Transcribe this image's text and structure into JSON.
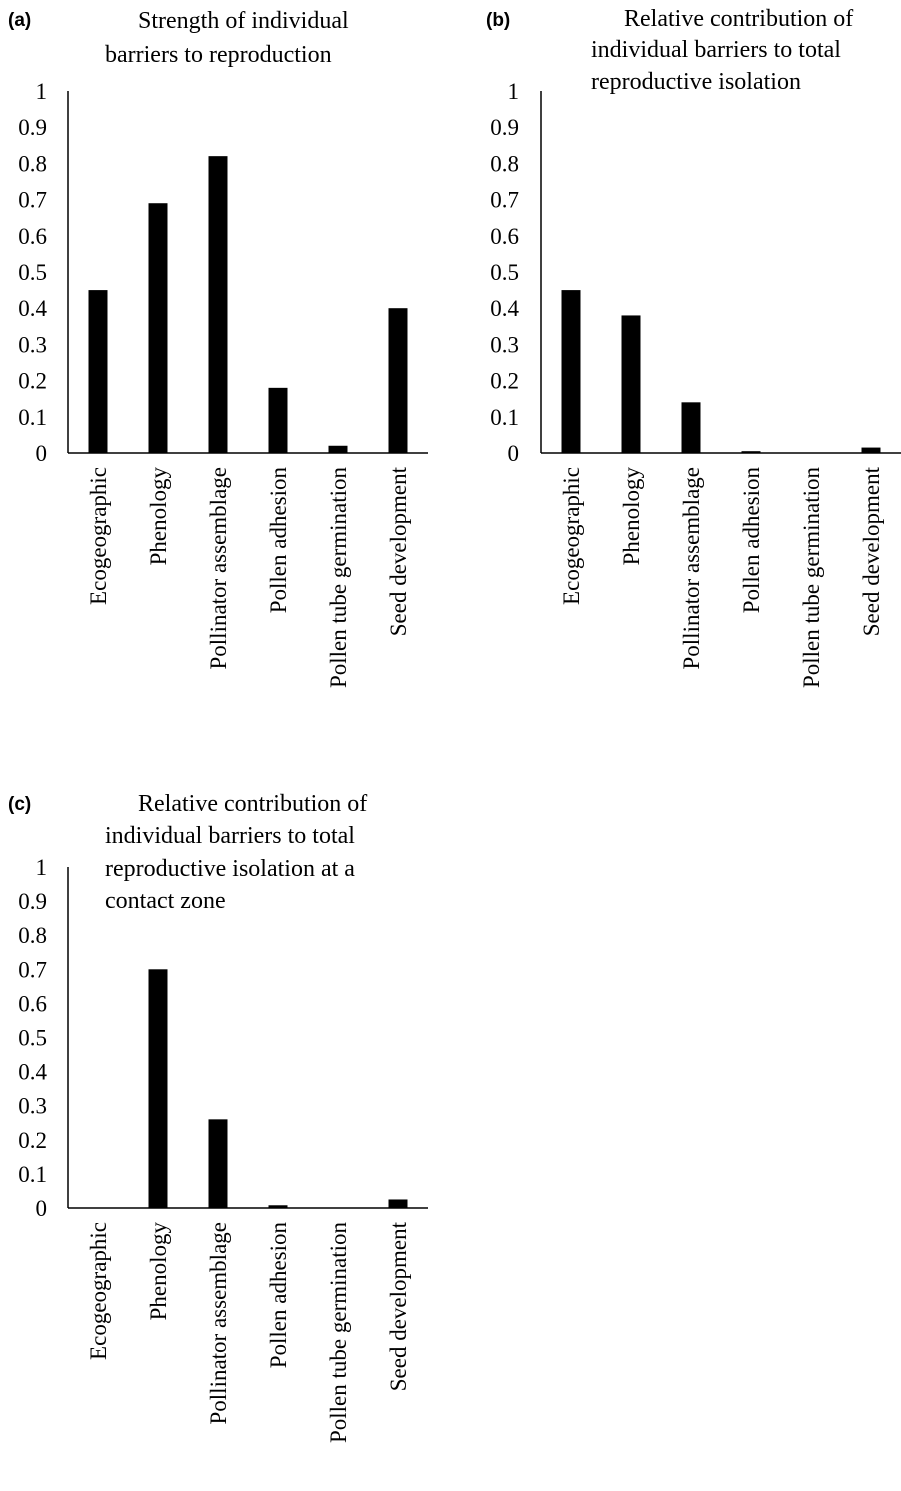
{
  "chart_data": [
    {
      "type": "bar",
      "panel_label": "(a)",
      "title": [
        "Strength of individual",
        "barriers to reproduction"
      ],
      "categories": [
        "Ecogeographic",
        "Phenology",
        "Pollinator assemblage",
        "Pollen adhesion",
        "Pollen tube germination",
        "Seed development"
      ],
      "values": [
        0.45,
        0.69,
        0.82,
        0.18,
        0.02,
        0.4
      ],
      "yticks": [
        "0",
        "0.1",
        "0.2",
        "0.3",
        "0.4",
        "0.5",
        "0.6",
        "0.7",
        "0.8",
        "0.9",
        "1"
      ],
      "ylim": [
        0,
        1
      ],
      "grid": false,
      "legend": "none",
      "bar_color": "#000000"
    },
    {
      "type": "bar",
      "panel_label": "(b)",
      "title": [
        "Relative contribution of",
        "individual barriers to total",
        "reproductive isolation"
      ],
      "categories": [
        "Ecogeographic",
        "Phenology",
        "Pollinator assemblage",
        "Pollen adhesion",
        "Pollen tube germination",
        "Seed development"
      ],
      "values": [
        0.45,
        0.38,
        0.14,
        0.005,
        0.0,
        0.015
      ],
      "yticks": [
        "0",
        "0.1",
        "0.2",
        "0.3",
        "0.4",
        "0.5",
        "0.6",
        "0.7",
        "0.8",
        "0.9",
        "1"
      ],
      "ylim": [
        0,
        1
      ],
      "grid": false,
      "legend": "none",
      "bar_color": "#000000"
    },
    {
      "type": "bar",
      "panel_label": "(c)",
      "title": [
        "Relative contribution of",
        "individual barriers to total",
        "reproductive isolation at a",
        "contact zone"
      ],
      "categories": [
        "Ecogeographic",
        "Phenology",
        "Pollinator assemblage",
        "Pollen adhesion",
        "Pollen tube germination",
        "Seed development"
      ],
      "values": [
        0.0,
        0.7,
        0.26,
        0.008,
        0.0,
        0.025
      ],
      "yticks": [
        "0",
        "0.1",
        "0.2",
        "0.3",
        "0.4",
        "0.5",
        "0.6",
        "0.7",
        "0.8",
        "0.9",
        "1"
      ],
      "ylim": [
        0,
        1
      ],
      "grid": false,
      "legend": "none",
      "bar_color": "#000000"
    }
  ]
}
